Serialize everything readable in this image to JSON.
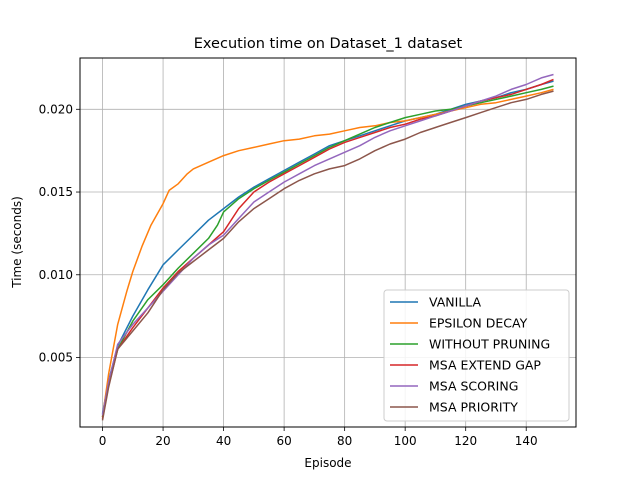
{
  "chart_data": {
    "type": "line",
    "title": "Execution time on Dataset_1 dataset",
    "xlabel": "Episode",
    "ylabel": "Time (seconds)",
    "xlim": [
      -7.45,
      156.45
    ],
    "ylim": [
      0.0008,
      0.0231
    ],
    "xticks": [
      0,
      20,
      40,
      60,
      80,
      100,
      120,
      140
    ],
    "xtick_labels": [
      "0",
      "20",
      "40",
      "60",
      "80",
      "100",
      "120",
      "140"
    ],
    "yticks": [
      0.005,
      0.01,
      0.015,
      0.02
    ],
    "ytick_labels": [
      "0.005",
      "0.010",
      "0.015",
      "0.020"
    ],
    "grid": true,
    "legend_position": "lower-right",
    "series": [
      {
        "name": "VANILLA",
        "color": "#1f77b4",
        "points": [
          [
            0,
            0.0016
          ],
          [
            2,
            0.0036
          ],
          [
            5,
            0.0057
          ],
          [
            10,
            0.0075
          ],
          [
            15,
            0.0091
          ],
          [
            20,
            0.0106
          ],
          [
            25,
            0.0115
          ],
          [
            30,
            0.0124
          ],
          [
            35,
            0.0133
          ],
          [
            40,
            0.014
          ],
          [
            45,
            0.0147
          ],
          [
            50,
            0.0153
          ],
          [
            55,
            0.0158
          ],
          [
            60,
            0.0163
          ],
          [
            65,
            0.0168
          ],
          [
            70,
            0.0173
          ],
          [
            75,
            0.0178
          ],
          [
            80,
            0.0181
          ],
          [
            85,
            0.0184
          ],
          [
            90,
            0.0187
          ],
          [
            95,
            0.019
          ],
          [
            100,
            0.0193
          ],
          [
            105,
            0.0195
          ],
          [
            110,
            0.0197
          ],
          [
            115,
            0.02
          ],
          [
            120,
            0.0203
          ],
          [
            125,
            0.0205
          ],
          [
            130,
            0.0207
          ],
          [
            135,
            0.021
          ],
          [
            140,
            0.0212
          ],
          [
            145,
            0.0215
          ],
          [
            149,
            0.0217
          ]
        ]
      },
      {
        "name": "EPSILON DECAY",
        "color": "#ff7f0e",
        "points": [
          [
            0,
            0.0014
          ],
          [
            2,
            0.004
          ],
          [
            5,
            0.007
          ],
          [
            8,
            0.009
          ],
          [
            10,
            0.0102
          ],
          [
            13,
            0.0117
          ],
          [
            16,
            0.013
          ],
          [
            20,
            0.0143
          ],
          [
            22,
            0.0151
          ],
          [
            25,
            0.0155
          ],
          [
            28,
            0.0161
          ],
          [
            30,
            0.0164
          ],
          [
            35,
            0.0168
          ],
          [
            40,
            0.0172
          ],
          [
            45,
            0.0175
          ],
          [
            50,
            0.0177
          ],
          [
            55,
            0.0179
          ],
          [
            60,
            0.0181
          ],
          [
            65,
            0.0182
          ],
          [
            70,
            0.0184
          ],
          [
            75,
            0.0185
          ],
          [
            80,
            0.0187
          ],
          [
            85,
            0.0189
          ],
          [
            90,
            0.019
          ],
          [
            95,
            0.0192
          ],
          [
            100,
            0.0193
          ],
          [
            105,
            0.0195
          ],
          [
            110,
            0.0197
          ],
          [
            115,
            0.0199
          ],
          [
            120,
            0.0201
          ],
          [
            125,
            0.0203
          ],
          [
            130,
            0.0204
          ],
          [
            135,
            0.0206
          ],
          [
            140,
            0.0208
          ],
          [
            145,
            0.021
          ],
          [
            149,
            0.0212
          ]
        ]
      },
      {
        "name": "WITHOUT PRUNING",
        "color": "#2ca02c",
        "points": [
          [
            0,
            0.0014
          ],
          [
            2,
            0.0034
          ],
          [
            5,
            0.0055
          ],
          [
            10,
            0.0072
          ],
          [
            15,
            0.0085
          ],
          [
            20,
            0.0094
          ],
          [
            25,
            0.0104
          ],
          [
            30,
            0.0113
          ],
          [
            35,
            0.0122
          ],
          [
            38,
            0.013
          ],
          [
            40,
            0.0138
          ],
          [
            45,
            0.0146
          ],
          [
            50,
            0.0152
          ],
          [
            55,
            0.0157
          ],
          [
            60,
            0.0162
          ],
          [
            65,
            0.0167
          ],
          [
            70,
            0.0172
          ],
          [
            75,
            0.0177
          ],
          [
            80,
            0.0181
          ],
          [
            85,
            0.0185
          ],
          [
            90,
            0.0189
          ],
          [
            95,
            0.0192
          ],
          [
            100,
            0.0195
          ],
          [
            105,
            0.0197
          ],
          [
            110,
            0.0199
          ],
          [
            115,
            0.02
          ],
          [
            120,
            0.0202
          ],
          [
            125,
            0.0204
          ],
          [
            130,
            0.0206
          ],
          [
            135,
            0.0208
          ],
          [
            140,
            0.021
          ],
          [
            145,
            0.0212
          ],
          [
            149,
            0.0214
          ]
        ]
      },
      {
        "name": "MSA EXTEND GAP",
        "color": "#d62728",
        "points": [
          [
            0,
            0.0013
          ],
          [
            2,
            0.0033
          ],
          [
            5,
            0.0055
          ],
          [
            10,
            0.0068
          ],
          [
            15,
            0.008
          ],
          [
            20,
            0.0092
          ],
          [
            25,
            0.0102
          ],
          [
            30,
            0.011
          ],
          [
            35,
            0.0118
          ],
          [
            40,
            0.0126
          ],
          [
            45,
            0.014
          ],
          [
            50,
            0.015
          ],
          [
            55,
            0.0156
          ],
          [
            60,
            0.0161
          ],
          [
            65,
            0.0166
          ],
          [
            70,
            0.0171
          ],
          [
            75,
            0.0176
          ],
          [
            80,
            0.018
          ],
          [
            85,
            0.0183
          ],
          [
            90,
            0.0186
          ],
          [
            95,
            0.0189
          ],
          [
            100,
            0.0191
          ],
          [
            105,
            0.0194
          ],
          [
            110,
            0.0196
          ],
          [
            115,
            0.0199
          ],
          [
            120,
            0.0202
          ],
          [
            125,
            0.0205
          ],
          [
            130,
            0.0207
          ],
          [
            135,
            0.0209
          ],
          [
            140,
            0.0212
          ],
          [
            145,
            0.0215
          ],
          [
            149,
            0.0218
          ]
        ]
      },
      {
        "name": "MSA SCORING",
        "color": "#9467bd",
        "points": [
          [
            0,
            0.0015
          ],
          [
            2,
            0.0035
          ],
          [
            5,
            0.0058
          ],
          [
            10,
            0.007
          ],
          [
            15,
            0.008
          ],
          [
            20,
            0.009
          ],
          [
            25,
            0.01
          ],
          [
            30,
            0.011
          ],
          [
            35,
            0.0118
          ],
          [
            40,
            0.0124
          ],
          [
            45,
            0.0134
          ],
          [
            50,
            0.0144
          ],
          [
            55,
            0.015
          ],
          [
            60,
            0.0156
          ],
          [
            65,
            0.0161
          ],
          [
            70,
            0.0166
          ],
          [
            75,
            0.017
          ],
          [
            80,
            0.0174
          ],
          [
            85,
            0.0178
          ],
          [
            90,
            0.0183
          ],
          [
            95,
            0.0187
          ],
          [
            100,
            0.019
          ],
          [
            105,
            0.0193
          ],
          [
            110,
            0.0196
          ],
          [
            115,
            0.0199
          ],
          [
            120,
            0.0202
          ],
          [
            125,
            0.0205
          ],
          [
            130,
            0.0208
          ],
          [
            135,
            0.0212
          ],
          [
            140,
            0.0215
          ],
          [
            145,
            0.0219
          ],
          [
            149,
            0.0221
          ]
        ]
      },
      {
        "name": "MSA PRIORITY",
        "color": "#8c564b",
        "points": [
          [
            0,
            0.0012
          ],
          [
            2,
            0.0032
          ],
          [
            5,
            0.0055
          ],
          [
            10,
            0.0066
          ],
          [
            15,
            0.0077
          ],
          [
            20,
            0.0091
          ],
          [
            25,
            0.0101
          ],
          [
            30,
            0.0108
          ],
          [
            35,
            0.0115
          ],
          [
            40,
            0.0122
          ],
          [
            45,
            0.0132
          ],
          [
            50,
            0.014
          ],
          [
            55,
            0.0146
          ],
          [
            60,
            0.0152
          ],
          [
            65,
            0.0157
          ],
          [
            70,
            0.0161
          ],
          [
            75,
            0.0164
          ],
          [
            80,
            0.0166
          ],
          [
            85,
            0.017
          ],
          [
            90,
            0.0175
          ],
          [
            95,
            0.0179
          ],
          [
            100,
            0.0182
          ],
          [
            105,
            0.0186
          ],
          [
            110,
            0.0189
          ],
          [
            115,
            0.0192
          ],
          [
            120,
            0.0195
          ],
          [
            125,
            0.0198
          ],
          [
            130,
            0.0201
          ],
          [
            135,
            0.0204
          ],
          [
            140,
            0.0206
          ],
          [
            145,
            0.0209
          ],
          [
            149,
            0.0211
          ]
        ]
      }
    ]
  }
}
